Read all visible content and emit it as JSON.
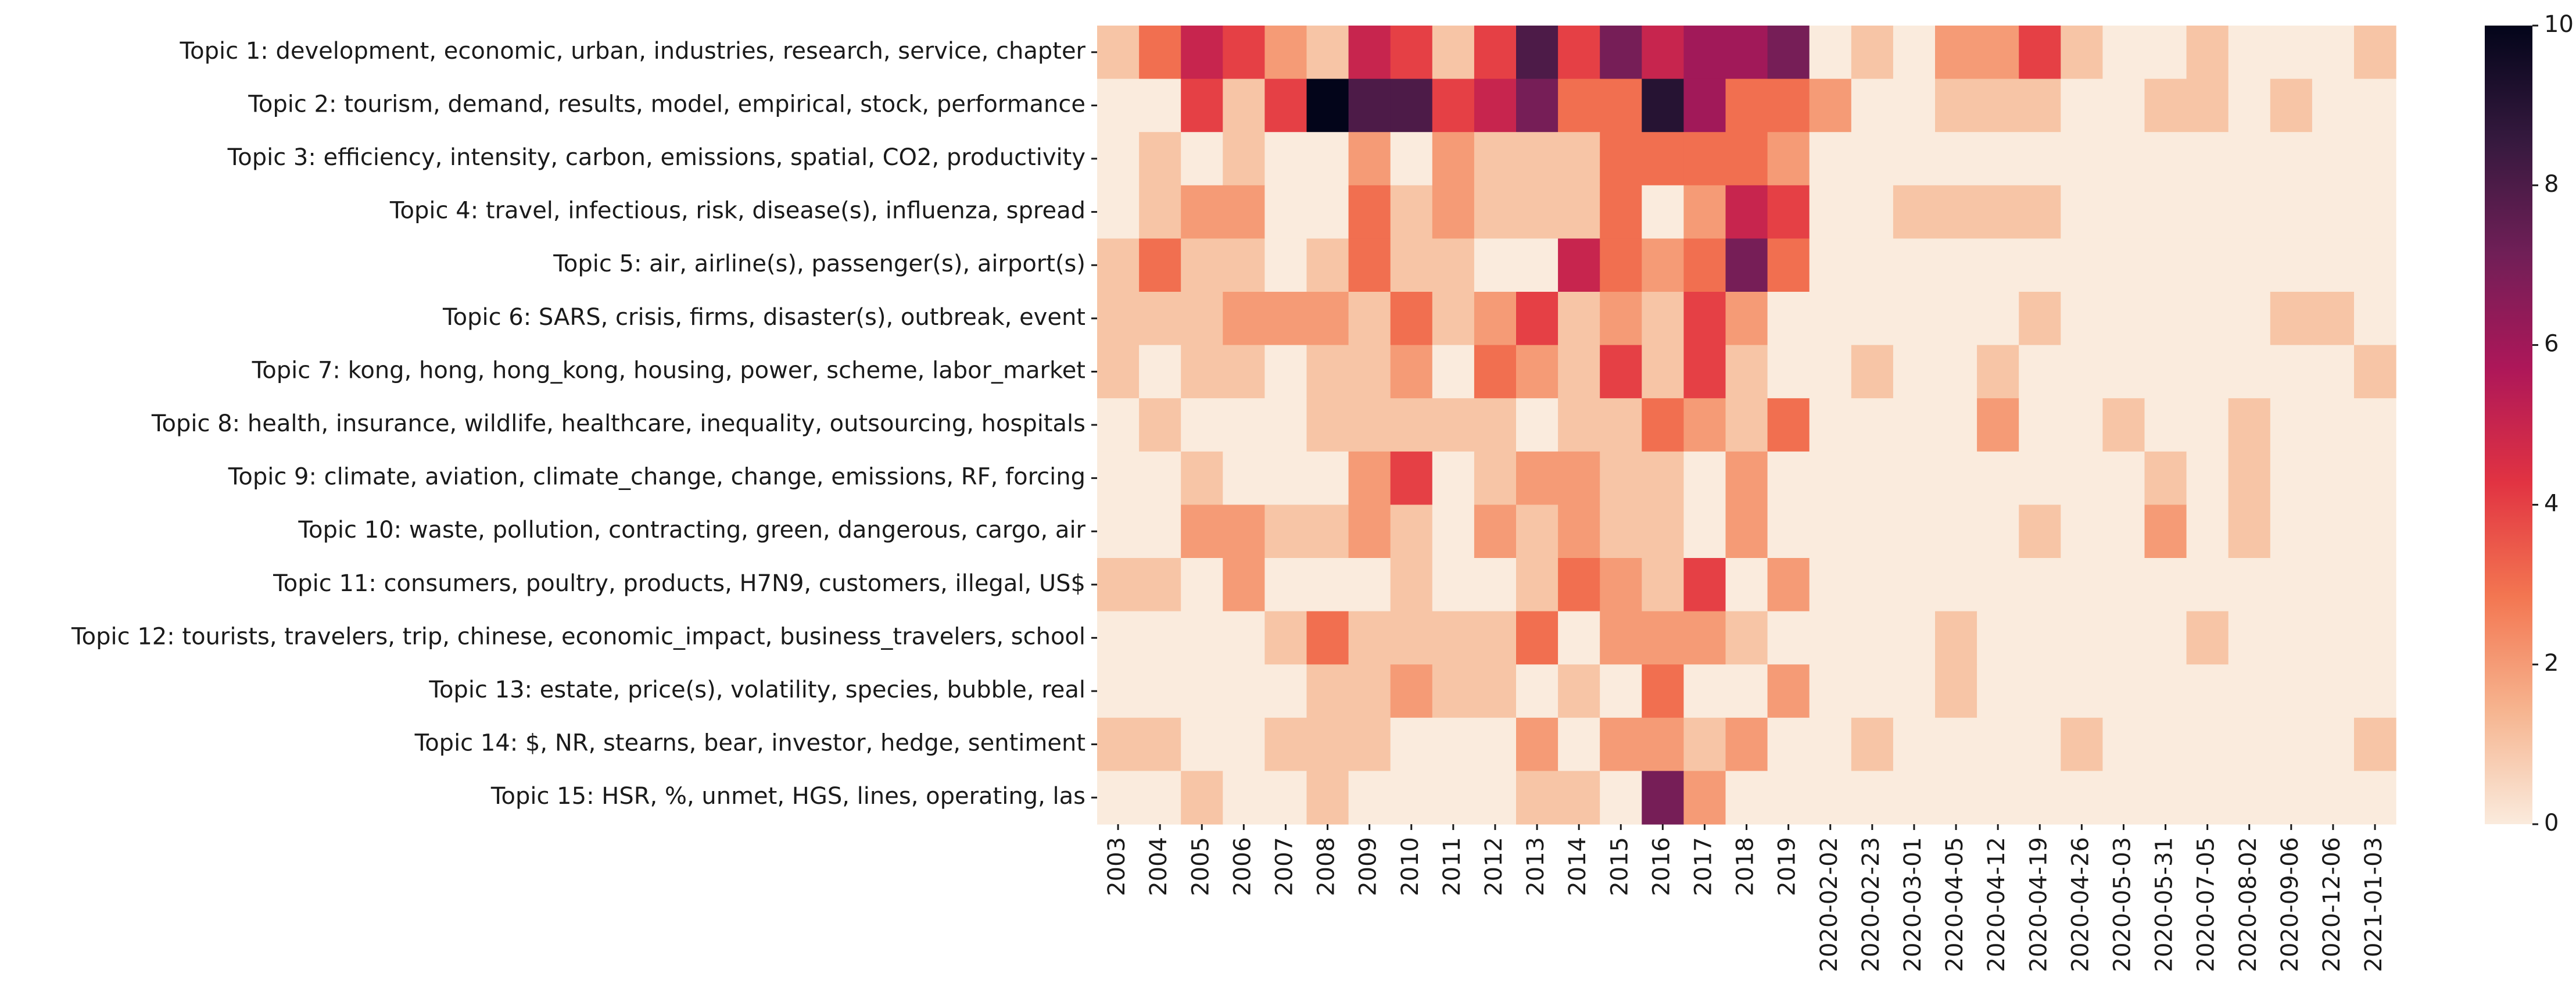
{
  "chart_data": {
    "type": "heatmap",
    "title": "",
    "xlabel": "",
    "ylabel": "",
    "rows": [
      "Topic 1: development, economic, urban, industries, research, service, chapter",
      "Topic 2: tourism, demand, results, model, empirical, stock, performance",
      "Topic 3: efficiency, intensity, carbon, emissions, spatial, CO2, productivity",
      "Topic 4: travel, infectious, risk, disease(s), influenza, spread",
      "Topic 5: air, airline(s), passenger(s), airport(s)",
      "Topic 6: SARS, crisis, firms, disaster(s), outbreak, event",
      "Topic 7: kong, hong, hong_kong, housing, power, scheme, labor_market",
      "Topic 8: health, insurance, wildlife, healthcare, inequality, outsourcing, hospitals",
      "Topic 9: climate, aviation, climate_change, change, emissions, RF, forcing",
      "Topic 10: waste, pollution, contracting, green, dangerous, cargo, air",
      "Topic 11: consumers, poultry, products, H7N9, customers, illegal, US$",
      "Topic 12: tourists, travelers, trip, chinese, economic_impact, business_travelers, school",
      "Topic 13: estate, price(s), volatility, species, bubble, real",
      "Topic 14: $, NR, stearns, bear, investor, hedge, sentiment",
      "Topic 15: HSR, %, unmet, HGS, lines, operating, las"
    ],
    "columns": [
      "2003",
      "2004",
      "2005",
      "2006",
      "2007",
      "2008",
      "2009",
      "2010",
      "2011",
      "2012",
      "2013",
      "2014",
      "2015",
      "2016",
      "2017",
      "2018",
      "2019",
      "2020-02-02",
      "2020-02-23",
      "2020-03-01",
      "2020-04-05",
      "2020-04-12",
      "2020-04-19",
      "2020-04-26",
      "2020-05-03",
      "2020-05-31",
      "2020-07-05",
      "2020-08-02",
      "2020-09-06",
      "2020-12-06",
      "2021-01-03"
    ],
    "values": [
      [
        1,
        3,
        5,
        4,
        2,
        1,
        5,
        4,
        1,
        4,
        8,
        4,
        7,
        5,
        6,
        6,
        7,
        0,
        1,
        0,
        2,
        2,
        4,
        1,
        0,
        0,
        1,
        0,
        0,
        0,
        1
      ],
      [
        0,
        0,
        4,
        1,
        4,
        10,
        8,
        8,
        4,
        5,
        7,
        3,
        3,
        9,
        6,
        3,
        3,
        2,
        0,
        0,
        1,
        1,
        1,
        0,
        0,
        1,
        1,
        0,
        1,
        0,
        0
      ],
      [
        0,
        1,
        0,
        1,
        0,
        0,
        2,
        0,
        2,
        1,
        1,
        1,
        3,
        3,
        3,
        3,
        2,
        0,
        0,
        0,
        0,
        0,
        0,
        0,
        0,
        0,
        0,
        0,
        0,
        0,
        0
      ],
      [
        0,
        1,
        2,
        2,
        0,
        0,
        3,
        1,
        2,
        1,
        1,
        1,
        3,
        0,
        2,
        5,
        4,
        0,
        0,
        1,
        1,
        1,
        1,
        0,
        0,
        0,
        0,
        0,
        0,
        0,
        0
      ],
      [
        1,
        3,
        1,
        1,
        0,
        1,
        3,
        1,
        1,
        0,
        0,
        5,
        3,
        2,
        3,
        7,
        3,
        0,
        0,
        0,
        0,
        0,
        0,
        0,
        0,
        0,
        0,
        0,
        0,
        0,
        0
      ],
      [
        1,
        1,
        1,
        2,
        2,
        2,
        1,
        3,
        1,
        2,
        4,
        1,
        2,
        1,
        4,
        2,
        0,
        0,
        0,
        0,
        0,
        0,
        1,
        0,
        0,
        0,
        0,
        0,
        1,
        1,
        0
      ],
      [
        1,
        0,
        1,
        1,
        0,
        1,
        1,
        2,
        0,
        3,
        2,
        1,
        4,
        1,
        4,
        1,
        0,
        0,
        1,
        0,
        0,
        1,
        0,
        0,
        0,
        0,
        0,
        0,
        0,
        0,
        1
      ],
      [
        0,
        1,
        0,
        0,
        0,
        1,
        1,
        1,
        1,
        1,
        0,
        1,
        1,
        3,
        2,
        1,
        3,
        0,
        0,
        0,
        0,
        2,
        0,
        0,
        1,
        0,
        0,
        1,
        0,
        0,
        0
      ],
      [
        0,
        0,
        1,
        0,
        0,
        0,
        2,
        4,
        0,
        1,
        2,
        2,
        1,
        1,
        0,
        2,
        0,
        0,
        0,
        0,
        0,
        0,
        0,
        0,
        0,
        1,
        0,
        1,
        0,
        0,
        0
      ],
      [
        0,
        0,
        2,
        2,
        1,
        1,
        2,
        1,
        0,
        2,
        1,
        2,
        1,
        1,
        0,
        2,
        0,
        0,
        0,
        0,
        0,
        0,
        1,
        0,
        0,
        2,
        0,
        1,
        0,
        0,
        0
      ],
      [
        1,
        1,
        0,
        2,
        0,
        0,
        0,
        1,
        0,
        0,
        1,
        3,
        2,
        1,
        4,
        0,
        2,
        0,
        0,
        0,
        0,
        0,
        0,
        0,
        0,
        0,
        0,
        0,
        0,
        0,
        0
      ],
      [
        0,
        0,
        0,
        0,
        1,
        3,
        1,
        1,
        1,
        1,
        3,
        0,
        2,
        2,
        2,
        1,
        0,
        0,
        0,
        0,
        1,
        0,
        0,
        0,
        0,
        0,
        1,
        0,
        0,
        0,
        0
      ],
      [
        0,
        0,
        0,
        0,
        0,
        1,
        1,
        2,
        1,
        1,
        0,
        1,
        0,
        3,
        0,
        0,
        2,
        0,
        0,
        0,
        1,
        0,
        0,
        0,
        0,
        0,
        0,
        0,
        0,
        0,
        0
      ],
      [
        1,
        1,
        0,
        0,
        1,
        1,
        1,
        0,
        0,
        0,
        2,
        0,
        2,
        2,
        1,
        2,
        0,
        0,
        1,
        0,
        0,
        0,
        0,
        1,
        0,
        0,
        0,
        0,
        0,
        0,
        1
      ],
      [
        0,
        0,
        1,
        0,
        0,
        1,
        0,
        0,
        0,
        0,
        1,
        1,
        0,
        7,
        2,
        0,
        0,
        0,
        0,
        0,
        0,
        0,
        0,
        0,
        0,
        0,
        0,
        0,
        0,
        0,
        0
      ]
    ],
    "colorbar": {
      "min": 0,
      "max": 10,
      "ticks": [
        "0",
        "2",
        "4",
        "6",
        "8",
        "10"
      ],
      "colormap": "rocket_r",
      "stops": [
        "#faebdd",
        "#f6b48f",
        "#f37651",
        "#e13342",
        "#ad1759",
        "#701f57",
        "#35193e",
        "#03051a"
      ]
    },
    "grid": false,
    "legend": "colorbar-right"
  }
}
